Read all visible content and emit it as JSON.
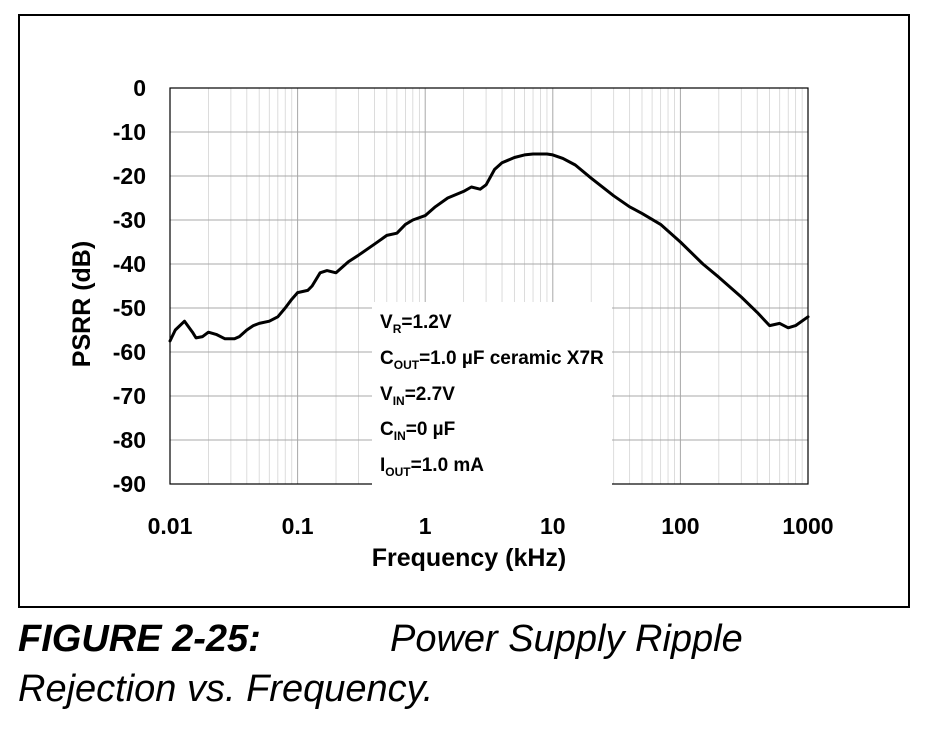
{
  "chart_data": {
    "type": "line",
    "xlabel": "Frequency (kHz)",
    "ylabel": "PSRR (dB)",
    "xscale": "log",
    "xlim": [
      0.01,
      1000
    ],
    "ylim": [
      -90,
      0
    ],
    "xticks": [
      "0.01",
      "0.1",
      "1",
      "10",
      "100",
      "1000"
    ],
    "yticks": [
      "0",
      "-10",
      "-20",
      "-30",
      "-40",
      "-50",
      "-60",
      "-70",
      "-80",
      "-90"
    ],
    "grid": true,
    "series": [
      {
        "color": "#000000",
        "points": [
          [
            0.01,
            -57.5
          ],
          [
            0.011,
            -55
          ],
          [
            0.013,
            -53
          ],
          [
            0.015,
            -55.5
          ],
          [
            0.016,
            -56.8
          ],
          [
            0.018,
            -56.5
          ],
          [
            0.02,
            -55.5
          ],
          [
            0.023,
            -56
          ],
          [
            0.027,
            -57
          ],
          [
            0.032,
            -57
          ],
          [
            0.035,
            -56.5
          ],
          [
            0.04,
            -55
          ],
          [
            0.045,
            -54
          ],
          [
            0.05,
            -53.5
          ],
          [
            0.06,
            -53
          ],
          [
            0.07,
            -52
          ],
          [
            0.08,
            -50
          ],
          [
            0.09,
            -48
          ],
          [
            0.1,
            -46.5
          ],
          [
            0.12,
            -46
          ],
          [
            0.13,
            -45
          ],
          [
            0.15,
            -42
          ],
          [
            0.17,
            -41.5
          ],
          [
            0.2,
            -42
          ],
          [
            0.25,
            -39.5
          ],
          [
            0.3,
            -38
          ],
          [
            0.4,
            -35.5
          ],
          [
            0.5,
            -33.5
          ],
          [
            0.6,
            -33
          ],
          [
            0.7,
            -31
          ],
          [
            0.8,
            -30
          ],
          [
            1.0,
            -29
          ],
          [
            1.2,
            -27
          ],
          [
            1.5,
            -25
          ],
          [
            2.0,
            -23.5
          ],
          [
            2.3,
            -22.5
          ],
          [
            2.7,
            -23
          ],
          [
            3.0,
            -22
          ],
          [
            3.5,
            -18.5
          ],
          [
            4.0,
            -17
          ],
          [
            5.0,
            -15.8
          ],
          [
            6.0,
            -15.2
          ],
          [
            7.0,
            -15
          ],
          [
            8.0,
            -15
          ],
          [
            9.0,
            -15
          ],
          [
            10.0,
            -15.2
          ],
          [
            12.0,
            -16
          ],
          [
            15.0,
            -17.5
          ],
          [
            20.0,
            -20.5
          ],
          [
            30.0,
            -24.5
          ],
          [
            40.0,
            -27
          ],
          [
            50.0,
            -28.5
          ],
          [
            70.0,
            -31
          ],
          [
            100.0,
            -35
          ],
          [
            150.0,
            -40
          ],
          [
            200.0,
            -43
          ],
          [
            300.0,
            -47.5
          ],
          [
            400.0,
            -51
          ],
          [
            500.0,
            -54
          ],
          [
            600.0,
            -53.5
          ],
          [
            700.0,
            -54.5
          ],
          [
            800.0,
            -54
          ],
          [
            1000.0,
            -52
          ]
        ]
      }
    ],
    "annotations": [
      "VR=1.2V",
      "COUT=1.0 µF ceramic X7R",
      "VIN=2.7V",
      "CIN=0 µF",
      "IOUT=1.0 mA"
    ]
  },
  "legend": {
    "line1": {
      "main": "V",
      "sub": "R",
      "rest": "=1.2V"
    },
    "line2": {
      "main": "C",
      "sub": "OUT",
      "rest": "=1.0 µF ceramic X7R"
    },
    "line3": {
      "main": "V",
      "sub": "IN",
      "rest": "=2.7V"
    },
    "line4": {
      "main": "C",
      "sub": "IN",
      "rest": "=0 µF"
    },
    "line5": {
      "main": "I",
      "sub": "OUT",
      "rest": "=1.0 mA"
    }
  },
  "caption": {
    "figure_number": "FIGURE 2-25:",
    "title_part1": "Power Supply Ripple",
    "title_part2": "Rejection vs. Frequency."
  }
}
